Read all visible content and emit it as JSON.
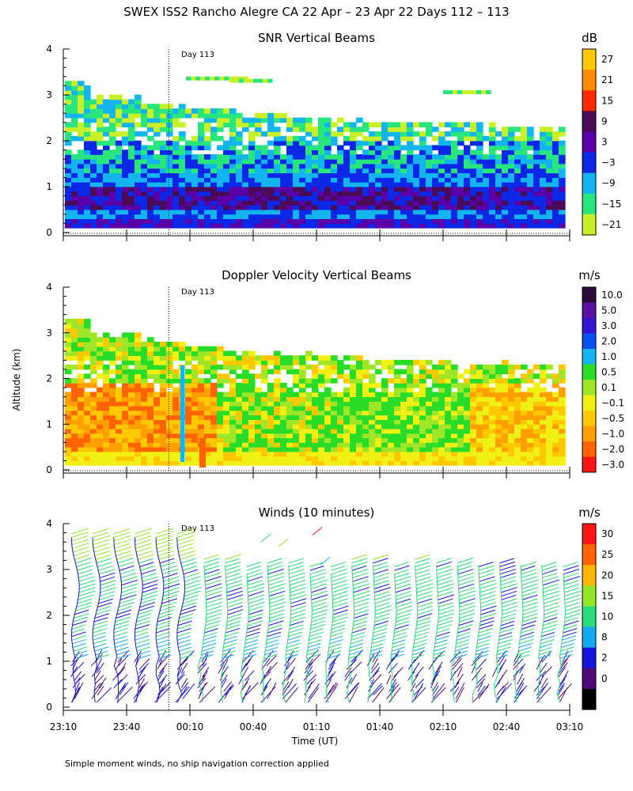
{
  "figure": {
    "title": "SWEX ISS2 Rancho Alegre CA  22 Apr – 23 Apr 22 Days 112 – 113",
    "ylabel": "Altitude (km)",
    "xlabel": "Time (UT)",
    "footnote": "Simple moment winds, no ship navigation correction applied",
    "day_marker_label": "Day 113",
    "day_marker_time": "00:00"
  },
  "chart_data": [
    {
      "type": "heatmap",
      "title": "SNR Vertical Beams",
      "units": "dB",
      "ylim": [
        0,
        4
      ],
      "yticks": [
        "0",
        "1",
        "2",
        "3",
        "4"
      ],
      "x_range": [
        "23:10",
        "03:10"
      ],
      "colorbar": {
        "labels": [
          "27",
          "21",
          "15",
          "9",
          "3",
          "−3",
          "−9",
          "−15",
          "−21"
        ],
        "colors": [
          "#ffc800",
          "#ff8c00",
          "#ff2a00",
          "#4a0a55",
          "#5a00a8",
          "#0a28e6",
          "#14b4f0",
          "#28e67d",
          "#c8f028"
        ]
      },
      "description_levels": {
        "low_layer_0_to_1km": "-3 to 9 dB",
        "mid_layer_1_to_2km": "-15 to -3 dB",
        "top_of_echo_km": 2.8
      }
    },
    {
      "type": "heatmap",
      "title": "Doppler Velocity Vertical Beams",
      "units": "m/s",
      "ylim": [
        0,
        4
      ],
      "yticks": [
        "0",
        "1",
        "2",
        "3",
        "4"
      ],
      "x_range": [
        "23:10",
        "03:10"
      ],
      "colorbar": {
        "labels": [
          "10.0",
          "5.0",
          "3.0",
          "2.0",
          "1.0",
          "0.5",
          "0.1",
          "−0.1",
          "−0.5",
          "−1.0",
          "−2.0",
          "−3.0"
        ],
        "colors": [
          "#2a0a3a",
          "#5a10a0",
          "#3214d2",
          "#0a50f0",
          "#14b4f0",
          "#28dc28",
          "#a0e628",
          "#f0f014",
          "#ffc800",
          "#ffa000",
          "#ff6400",
          "#ff1414"
        ]
      }
    },
    {
      "type": "wind_barbs",
      "title": "Winds (10 minutes)",
      "units": "m/s",
      "ylim": [
        0,
        4
      ],
      "yticks": [
        "0",
        "1",
        "2",
        "3",
        "4"
      ],
      "x_categories": [
        "23:10",
        "23:40",
        "00:10",
        "00:40",
        "01:10",
        "01:40",
        "02:10",
        "02:40",
        "03:10"
      ],
      "colorbar": {
        "labels": [
          "30",
          "25",
          "20",
          "15",
          "10",
          "8",
          "2",
          "0"
        ],
        "colors": [
          "#ff1414",
          "#ff6400",
          "#ffb400",
          "#96e628",
          "#28dc78",
          "#14aaf0",
          "#1414dc",
          "#500a78",
          "#000000"
        ]
      },
      "profiles_times": [
        "23:15",
        "23:25",
        "23:35",
        "23:45",
        "23:55",
        "00:05",
        "00:15",
        "00:25",
        "00:35",
        "00:45",
        "00:55",
        "01:05",
        "01:15",
        "01:25",
        "01:35",
        "01:45",
        "01:55",
        "02:05",
        "02:15",
        "02:25",
        "02:35",
        "02:45",
        "02:55",
        "03:05"
      ],
      "speed_profile_ms": [
        {
          "alt_km": 0.2,
          "speed": 3
        },
        {
          "alt_km": 0.6,
          "speed": 5
        },
        {
          "alt_km": 1.0,
          "speed": 8
        },
        {
          "alt_km": 1.5,
          "speed": 10
        },
        {
          "alt_km": 2.0,
          "speed": 12
        },
        {
          "alt_km": 2.5,
          "speed": 14
        },
        {
          "alt_km": 3.0,
          "speed": 12
        },
        {
          "alt_km": 3.6,
          "speed": 15
        }
      ]
    }
  ]
}
